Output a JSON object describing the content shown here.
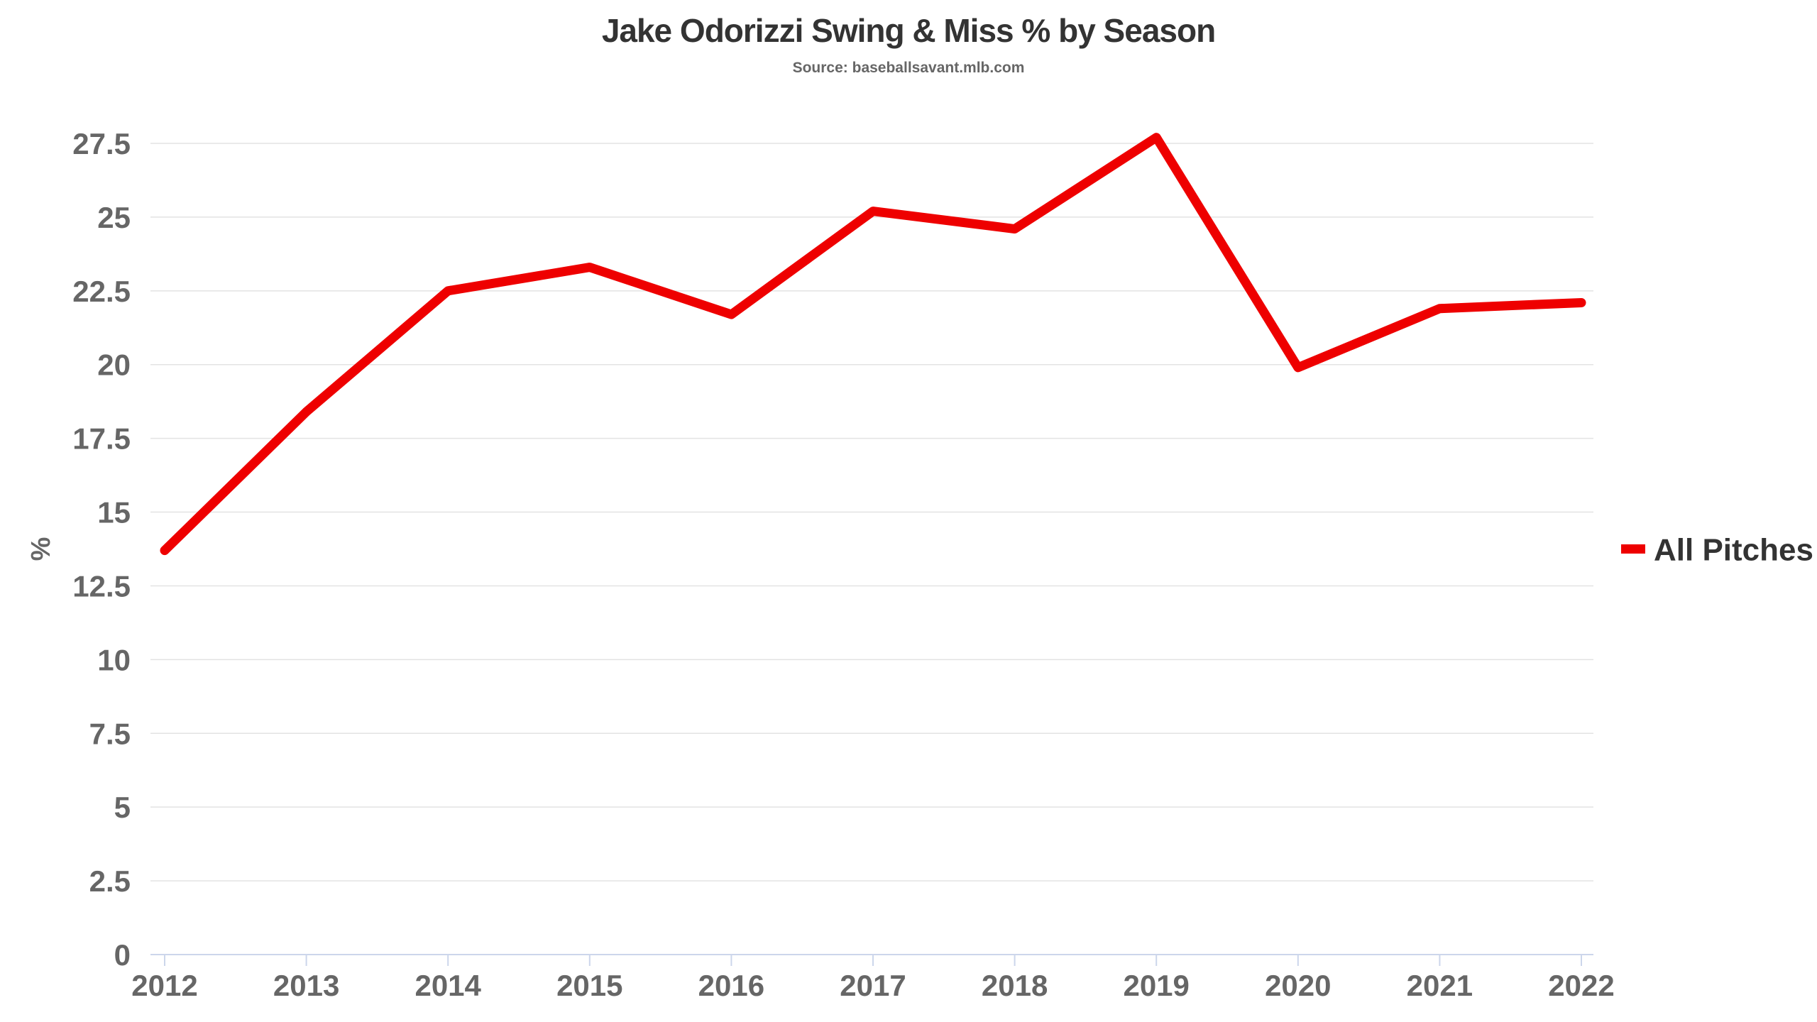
{
  "chart_data": {
    "type": "line",
    "title": "Jake Odorizzi Swing & Miss % by Season",
    "subtitle": "Source: baseballsavant.mlb.com",
    "xlabel": "",
    "ylabel": "%",
    "x": [
      "2012",
      "2013",
      "2014",
      "2015",
      "2016",
      "2017",
      "2018",
      "2019",
      "2020",
      "2021",
      "2022"
    ],
    "ylim": [
      0,
      27.5
    ],
    "yticks": [
      "0",
      "2.5",
      "5",
      "7.5",
      "10",
      "12.5",
      "15",
      "17.5",
      "20",
      "22.5",
      "25",
      "27.5"
    ],
    "grid": true,
    "legend_position": "right",
    "series": [
      {
        "name": "All Pitches",
        "color": "#ee0000",
        "values": [
          13.7,
          18.4,
          22.5,
          23.3,
          21.7,
          25.2,
          24.6,
          27.7,
          19.9,
          21.9,
          22.1
        ]
      }
    ]
  }
}
